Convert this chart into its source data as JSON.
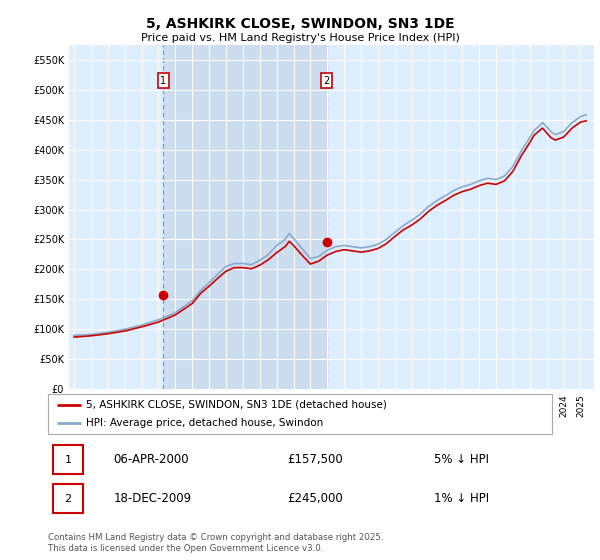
{
  "title": "5, ASHKIRK CLOSE, SWINDON, SN3 1DE",
  "subtitle": "Price paid vs. HM Land Registry's House Price Index (HPI)",
  "ylabel_ticks": [
    "£0",
    "£50K",
    "£100K",
    "£150K",
    "£200K",
    "£250K",
    "£300K",
    "£350K",
    "£400K",
    "£450K",
    "£500K",
    "£550K"
  ],
  "ytick_values": [
    0,
    50000,
    100000,
    150000,
    200000,
    250000,
    300000,
    350000,
    400000,
    450000,
    500000,
    550000
  ],
  "ylim": [
    0,
    575000
  ],
  "legend_labels": [
    "5, ASHKIRK CLOSE, SWINDON, SN3 1DE (detached house)",
    "HPI: Average price, detached house, Swindon"
  ],
  "line_colors": [
    "#cc0000",
    "#88aacc"
  ],
  "annotation1": {
    "label": "1",
    "date": "06-APR-2000",
    "price": "£157,500",
    "pct": "5% ↓ HPI",
    "x_year": 2000.27
  },
  "annotation2": {
    "label": "2",
    "date": "18-DEC-2009",
    "price": "£245,000",
    "pct": "1% ↓ HPI",
    "x_year": 2009.96
  },
  "vline1_x": 2000.27,
  "vline2_x": 2009.96,
  "footnote": "Contains HM Land Registry data © Crown copyright and database right 2025.\nThis data is licensed under the Open Government Licence v3.0.",
  "background_color": "#ffffff",
  "plot_bg_color": "#ddeeff",
  "shaded_region_color": "#ccddf0",
  "grid_color": "#ffffff",
  "title_fontsize": 10,
  "subtitle_fontsize": 8,
  "tick_fontsize": 7,
  "marker1_price": 157500,
  "marker2_price": 245000,
  "xlim_left": 1994.7,
  "xlim_right": 2025.8
}
